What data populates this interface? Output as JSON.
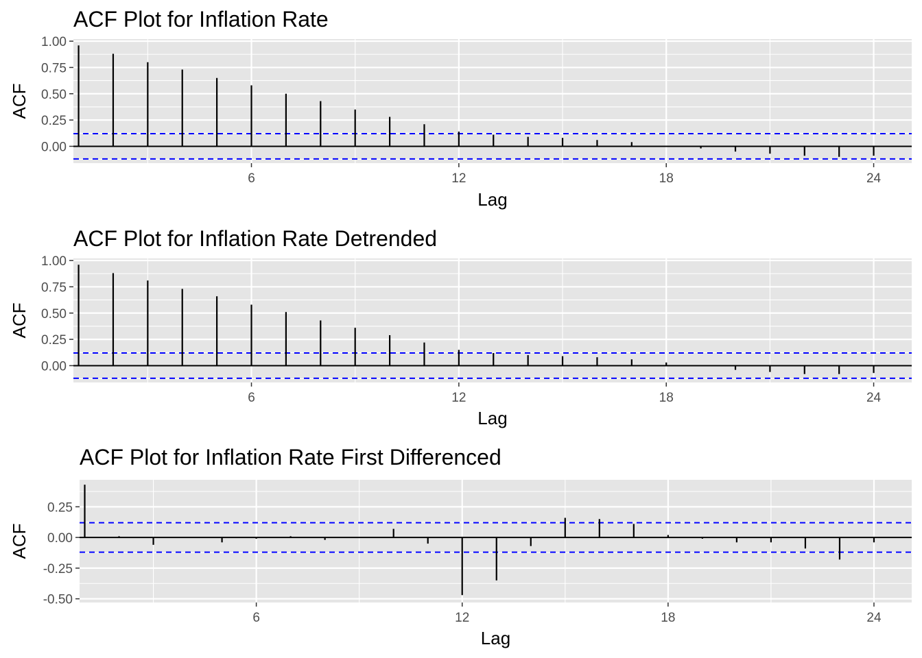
{
  "chart_data": [
    {
      "type": "bar",
      "title": "ACF Plot for Inflation Rate",
      "xlabel": "Lag",
      "ylabel": "ACF",
      "x_ticks": [
        6,
        12,
        18,
        24
      ],
      "x_tick_labels": [
        "6",
        "12",
        "18",
        "24"
      ],
      "y_ticks": [
        0,
        0.25,
        0.5,
        0.75,
        1
      ],
      "y_tick_labels": [
        "0.00",
        "0.25",
        "0.50",
        "0.75",
        "1.00"
      ],
      "xlim": [
        0.85,
        25.1
      ],
      "ylim": [
        -0.16,
        1.02
      ],
      "confidence_limit": 0.12,
      "grid": true,
      "colors": {
        "panel": "#e5e5e5",
        "grid": "#ffffff",
        "spike": "#000000",
        "ci": "#0000ff"
      },
      "lags": [
        1,
        2,
        3,
        4,
        5,
        6,
        7,
        8,
        9,
        10,
        11,
        12,
        13,
        14,
        15,
        16,
        17,
        18,
        19,
        20,
        21,
        22,
        23,
        24
      ],
      "values": [
        0.96,
        0.88,
        0.8,
        0.73,
        0.65,
        0.58,
        0.5,
        0.43,
        0.35,
        0.28,
        0.21,
        0.14,
        0.11,
        0.09,
        0.08,
        0.06,
        0.04,
        0.0,
        -0.02,
        -0.05,
        -0.07,
        -0.09,
        -0.1,
        -0.09
      ]
    },
    {
      "type": "bar",
      "title": "ACF Plot for Inflation Rate Detrended",
      "xlabel": "Lag",
      "ylabel": "ACF",
      "x_ticks": [
        6,
        12,
        18,
        24
      ],
      "x_tick_labels": [
        "6",
        "12",
        "18",
        "24"
      ],
      "y_ticks": [
        0,
        0.25,
        0.5,
        0.75,
        1
      ],
      "y_tick_labels": [
        "0.00",
        "0.25",
        "0.50",
        "0.75",
        "1.00"
      ],
      "xlim": [
        0.85,
        25.1
      ],
      "ylim": [
        -0.16,
        1.02
      ],
      "confidence_limit": 0.12,
      "grid": true,
      "colors": {
        "panel": "#e5e5e5",
        "grid": "#ffffff",
        "spike": "#000000",
        "ci": "#0000ff"
      },
      "lags": [
        1,
        2,
        3,
        4,
        5,
        6,
        7,
        8,
        9,
        10,
        11,
        12,
        13,
        14,
        15,
        16,
        17,
        18,
        19,
        20,
        21,
        22,
        23,
        24
      ],
      "values": [
        0.96,
        0.88,
        0.81,
        0.73,
        0.66,
        0.58,
        0.51,
        0.43,
        0.36,
        0.29,
        0.22,
        0.15,
        0.12,
        0.1,
        0.09,
        0.08,
        0.06,
        0.03,
        0.0,
        -0.04,
        -0.06,
        -0.08,
        -0.08,
        -0.07
      ]
    },
    {
      "type": "bar",
      "title": "ACF Plot for Inflation Rate First Differenced",
      "xlabel": "Lag",
      "ylabel": "ACF",
      "x_ticks": [
        6,
        12,
        18,
        24
      ],
      "x_tick_labels": [
        "6",
        "12",
        "18",
        "24"
      ],
      "y_ticks": [
        -0.5,
        -0.25,
        0,
        0.25
      ],
      "y_tick_labels": [
        "-0.50",
        "-0.25",
        "0.00",
        "0.25"
      ],
      "xlim": [
        0.85,
        25.1
      ],
      "ylim": [
        -0.53,
        0.47
      ],
      "confidence_limit": 0.12,
      "grid": true,
      "colors": {
        "panel": "#e5e5e5",
        "grid": "#ffffff",
        "spike": "#000000",
        "ci": "#0000ff"
      },
      "lags": [
        1,
        2,
        3,
        4,
        5,
        6,
        7,
        8,
        9,
        10,
        11,
        12,
        13,
        14,
        15,
        16,
        17,
        18,
        19,
        20,
        21,
        22,
        23,
        24
      ],
      "values": [
        0.43,
        0.01,
        -0.06,
        0.0,
        -0.04,
        -0.01,
        0.01,
        -0.02,
        0.0,
        0.07,
        -0.05,
        -0.47,
        -0.35,
        -0.07,
        0.16,
        0.15,
        0.11,
        0.02,
        -0.01,
        -0.04,
        -0.04,
        -0.09,
        -0.18,
        -0.04
      ]
    }
  ]
}
